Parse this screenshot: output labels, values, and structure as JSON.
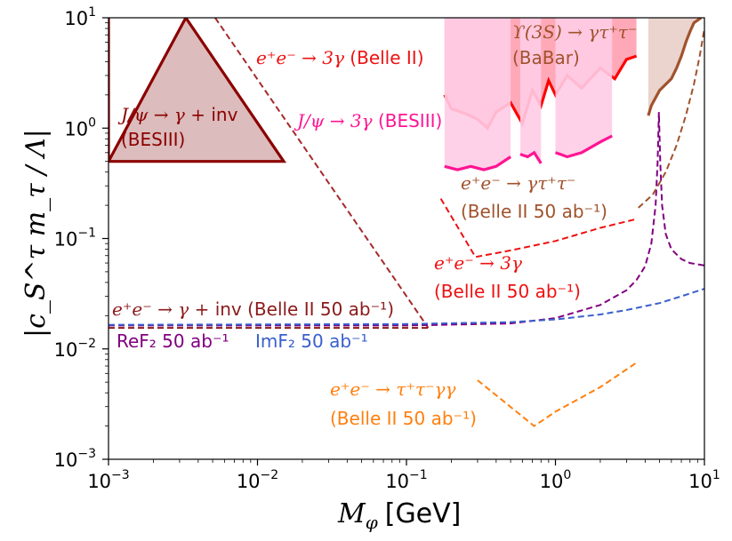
{
  "chart_data": {
    "type": "line",
    "title": "",
    "xscale": "log",
    "yscale": "log",
    "xlim": [
      0.001,
      10
    ],
    "ylim": [
      0.001,
      10
    ],
    "xlabel_math": "M",
    "xlabel_sub": "φ",
    "xlabel_unit": "[GeV]",
    "ylabel": "|c_S^τ m_τ / Λ|",
    "xticks": [
      {
        "value": 0.001,
        "base": "10",
        "exp": "−3"
      },
      {
        "value": 0.01,
        "base": "10",
        "exp": "−2"
      },
      {
        "value": 0.1,
        "base": "10",
        "exp": "−1"
      },
      {
        "value": 1,
        "base": "10",
        "exp": "0"
      },
      {
        "value": 10,
        "base": "10",
        "exp": "1"
      }
    ],
    "yticks": [
      {
        "value": 0.001,
        "base": "10",
        "exp": "−3"
      },
      {
        "value": 0.01,
        "base": "10",
        "exp": "−2"
      },
      {
        "value": 0.1,
        "base": "10",
        "exp": "−1"
      },
      {
        "value": 1,
        "base": "10",
        "exp": "0"
      },
      {
        "value": 10,
        "base": "10",
        "exp": "1"
      }
    ],
    "series": [
      {
        "name": "J/psi -> gamma + inv (BESIII)",
        "kind": "excluded_region",
        "color": "#8b0000",
        "fill": "#dcbcbc",
        "x": [
          0.001,
          0.001,
          0.0033,
          0.015,
          0.001
        ],
        "y": [
          10,
          0.5,
          10,
          0.5,
          0.5
        ],
        "closed": true
      },
      {
        "name": "e+e- -> 3gamma (Belle II)",
        "kind": "dashed",
        "color": "#a52a2a",
        "x": [
          0.0052,
          0.14
        ],
        "y": [
          10,
          0.0155
        ]
      },
      {
        "name": "e+e- -> gamma + inv (Belle II 50 ab-1)",
        "kind": "dashed",
        "color": "#8b1a1a",
        "x": [
          0.001,
          0.14
        ],
        "y": [
          0.0155,
          0.0155
        ]
      },
      {
        "name": "Re F2 50 ab-1",
        "kind": "dashed",
        "color": "#800080",
        "x": [
          0.001,
          0.1,
          0.5,
          1,
          2,
          3,
          3.5,
          4,
          4.4,
          4.7,
          4.85,
          4.95,
          5.05,
          5.2,
          5.5,
          6,
          7,
          8,
          10
        ],
        "y": [
          0.0163,
          0.0163,
          0.017,
          0.019,
          0.025,
          0.034,
          0.042,
          0.056,
          0.09,
          0.2,
          0.5,
          1.4,
          0.5,
          0.2,
          0.11,
          0.08,
          0.065,
          0.06,
          0.057
        ]
      },
      {
        "name": "Im F2 50 ab-1",
        "kind": "dashed",
        "color": "#3a5fcd",
        "x": [
          0.001,
          0.1,
          0.5,
          1,
          2,
          3,
          5,
          7,
          10
        ],
        "y": [
          0.0165,
          0.0168,
          0.0175,
          0.0185,
          0.0205,
          0.0225,
          0.026,
          0.03,
          0.035
        ]
      },
      {
        "name": "e+e- -> 3gamma (Belle II 50 ab-1)",
        "kind": "dashed",
        "color": "#ee1111",
        "x": [
          0.17,
          0.29,
          0.5,
          1,
          2,
          3.5
        ],
        "y": [
          0.23,
          0.068,
          0.078,
          0.095,
          0.125,
          0.15
        ]
      },
      {
        "name": "e+e- -> gamma tau tau (Belle II 50 ab-1)",
        "kind": "dashed",
        "color": "#a0522d",
        "x": [
          3.6,
          4.5,
          5.5,
          6.5,
          7.5,
          8.5,
          9.3,
          10
        ],
        "y": [
          0.19,
          0.25,
          0.4,
          0.7,
          1.3,
          2.5,
          4.5,
          8
        ]
      },
      {
        "name": "e+e- -> tau tau gamma gamma (Belle II 50 ab-1)",
        "kind": "dashed",
        "color": "#ff7f0e",
        "x": [
          0.3,
          0.72,
          1,
          2,
          3.5
        ],
        "y": [
          0.0052,
          0.002,
          0.0027,
          0.0045,
          0.0075
        ]
      },
      {
        "name": "Upsilon(3S) -> gamma tau tau (BaBar)",
        "kind": "excluded_region",
        "color": "#ff0000",
        "fill": "#ffa0b0",
        "x": [
          0.18,
          0.2,
          0.25,
          0.3,
          0.35,
          0.4,
          0.5,
          0.6,
          0.7,
          0.8,
          0.9,
          1,
          1.2,
          1.5,
          2,
          2.5,
          3,
          3.5
        ],
        "y": [
          2.0,
          1.5,
          1.35,
          1.2,
          1.0,
          1.4,
          1.7,
          1.1,
          2.2,
          1.6,
          2.7,
          2.0,
          3.0,
          2.3,
          3.5,
          2.8,
          4.2,
          4.5
        ]
      },
      {
        "name": "J/psi -> 3gamma (BESIII)",
        "kind": "excluded_region",
        "color": "#ff1493",
        "fill": "#ffcce6",
        "segments": [
          {
            "x": [
              0.18,
              0.22,
              0.27,
              0.33,
              0.4,
              0.5
            ],
            "y": [
              0.45,
              0.42,
              0.45,
              0.42,
              0.45,
              0.55
            ]
          },
          {
            "x": [
              0.58,
              0.65,
              0.72,
              0.8
            ],
            "y": [
              0.58,
              0.55,
              0.6,
              0.48
            ]
          },
          {
            "x": [
              1.0,
              1.2,
              1.5,
              2.0,
              2.4
            ],
            "y": [
              0.6,
              0.55,
              0.6,
              0.75,
              0.85
            ]
          }
        ]
      },
      {
        "name": "Upsilon(3S) -> gamma tau tau (BaBar) high mass",
        "kind": "excluded_region",
        "color": "#a0522d",
        "fill": "#e8cfc8",
        "x": [
          4.2,
          4.4,
          5.0,
          6.0,
          6.5,
          7.0,
          7.5,
          8.0,
          8.5,
          9.0,
          9.5
        ],
        "y": [
          1.3,
          1.6,
          2.2,
          2.8,
          3.5,
          4.5,
          6.0,
          7.5,
          9.0,
          9.5,
          10
        ]
      }
    ],
    "annotations": [
      {
        "id": "bes_inv",
        "math": "J/ψ → γ + ",
        "text": "inv",
        "line2": "(BESIII)",
        "color": "#8b0000"
      },
      {
        "id": "belle_3g",
        "math": "e⁺e⁻ → 3γ ",
        "text": "(Belle II)",
        "color": "#ee1111"
      },
      {
        "id": "bes_3g",
        "math": "J/ψ → 3γ ",
        "text": "(BESIII)",
        "color": "#ff1493"
      },
      {
        "id": "babar",
        "math": "ϒ(3S) → γτ⁺τ⁻",
        "line2": "(BaBar)",
        "color": "#a0522d"
      },
      {
        "id": "belle_gtt",
        "math": "e⁺e⁻ → γτ⁺τ⁻",
        "line2": "(Belle II 50 ab⁻¹)",
        "color": "#a0522d"
      },
      {
        "id": "belle_3g50",
        "math": "e⁺e⁻ → 3γ",
        "line2": "(Belle II 50 ab⁻¹)",
        "color": "#ee1111"
      },
      {
        "id": "belle_ginv50",
        "math": "e⁺e⁻ → γ + ",
        "text": "inv (Belle II 50 ab⁻¹)",
        "color": "#8b1a1a"
      },
      {
        "id": "ref2",
        "text": "ReF₂ 50 ab⁻¹",
        "color": "#800080"
      },
      {
        "id": "imf2",
        "text": "ImF₂ 50 ab⁻¹",
        "color": "#3a5fcd"
      },
      {
        "id": "belle_ttgg",
        "math": "e⁺e⁻ → τ⁺τ⁻γγ",
        "line2": "(Belle II 50 ab⁻¹)",
        "color": "#ff7f0e"
      }
    ]
  }
}
